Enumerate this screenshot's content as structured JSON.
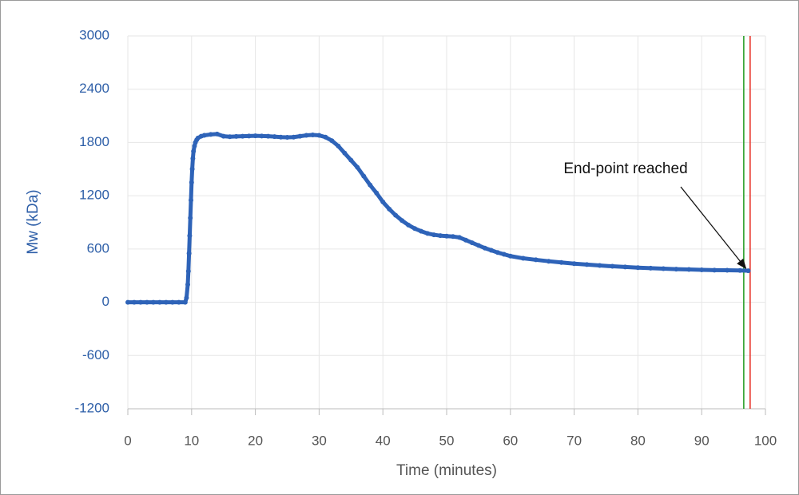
{
  "chart_data": {
    "type": "scatter",
    "y_label": "Mw (kDa)",
    "x_label": "Time (minutes)",
    "annotation": "End-point reached",
    "xlim": [
      0,
      100
    ],
    "xticks": [
      0,
      10,
      20,
      30,
      40,
      50,
      60,
      70,
      80,
      90,
      100
    ],
    "ylim": [
      -1200,
      3000
    ],
    "yticks": [
      -1200,
      -600,
      0,
      600,
      1200,
      1800,
      2400,
      3000
    ],
    "grid": true,
    "series": [
      {
        "color": "#2e63b8",
        "x": [
          0,
          1,
          2,
          3,
          4,
          5,
          6,
          7,
          8,
          9,
          9.2,
          9.4,
          9.5,
          9.6,
          9.7,
          9.8,
          9.9,
          10.0,
          10.1,
          10.2,
          10.3,
          10.45,
          10.6,
          10.8,
          11,
          11.5,
          12,
          13,
          14,
          15,
          16,
          17,
          18,
          19,
          20,
          21,
          22,
          23,
          24,
          25,
          26,
          27,
          28,
          29,
          30,
          31,
          32,
          33,
          34,
          35,
          36,
          37,
          38,
          39,
          40,
          41,
          42,
          43,
          44,
          45,
          46,
          47,
          48,
          49,
          50,
          51,
          52,
          53,
          54,
          55,
          56,
          57,
          58,
          59,
          60,
          62,
          64,
          66,
          68,
          70,
          72,
          74,
          76,
          78,
          80,
          82,
          84,
          86,
          88,
          90,
          92,
          94,
          96,
          97.3
        ],
        "values": [
          0,
          0,
          0,
          0,
          0,
          0,
          0,
          0,
          0,
          0,
          50,
          200,
          350,
          550,
          750,
          950,
          1150,
          1350,
          1500,
          1620,
          1700,
          1760,
          1800,
          1830,
          1850,
          1870,
          1880,
          1890,
          1895,
          1870,
          1865,
          1868,
          1870,
          1872,
          1875,
          1872,
          1870,
          1866,
          1860,
          1858,
          1860,
          1870,
          1880,
          1885,
          1880,
          1860,
          1820,
          1760,
          1680,
          1600,
          1520,
          1420,
          1320,
          1230,
          1130,
          1050,
          980,
          920,
          870,
          830,
          800,
          775,
          760,
          750,
          745,
          740,
          730,
          700,
          670,
          640,
          610,
          585,
          560,
          540,
          520,
          495,
          478,
          462,
          448,
          435,
          424,
          414,
          405,
          397,
          390,
          384,
          378,
          373,
          369,
          365,
          362,
          360,
          358,
          355
        ]
      }
    ],
    "vlines": [
      {
        "x": 96.6,
        "color": "#2ca02c"
      },
      {
        "x": 97.6,
        "color": "#e8352b"
      }
    ]
  }
}
